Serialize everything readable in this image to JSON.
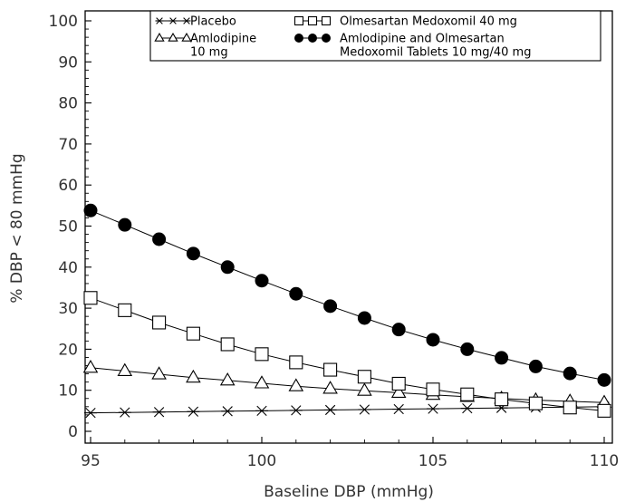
{
  "chart_data": {
    "type": "line",
    "xlabel": "Baseline DBP (mmHg)",
    "ylabel": "% DBP < 80 mmHg",
    "xlim": [
      95,
      110
    ],
    "ylim": [
      0,
      100
    ],
    "x_ticks": [
      95,
      100,
      105,
      110
    ],
    "y_ticks": [
      0,
      10,
      20,
      30,
      40,
      50,
      60,
      70,
      80,
      90,
      100
    ],
    "grid": false,
    "legend_position": "top-right",
    "x": [
      95,
      96,
      97,
      98,
      99,
      100,
      101,
      102,
      103,
      104,
      105,
      106,
      107,
      108,
      109,
      110
    ],
    "series": [
      {
        "name": "Placebo",
        "marker": "asterisk",
        "color": "#000000",
        "values": [
          4.5,
          4.6,
          4.7,
          4.8,
          4.9,
          5.0,
          5.1,
          5.2,
          5.3,
          5.4,
          5.5,
          5.6,
          5.7,
          5.8,
          5.9,
          6.0
        ]
      },
      {
        "name": "Amlodipine 10 mg",
        "legend_lines": [
          "Amlodipine",
          "10 mg"
        ],
        "marker": "triangle",
        "color": "#000000",
        "values": [
          15.5,
          14.7,
          13.9,
          13.1,
          12.4,
          11.7,
          11.0,
          10.4,
          9.9,
          9.4,
          8.9,
          8.4,
          8.0,
          7.6,
          7.3,
          7.0
        ]
      },
      {
        "name": "Olmesartan Medoxomil 40 mg",
        "marker": "square",
        "color": "#000000",
        "values": [
          32.5,
          29.5,
          26.5,
          23.8,
          21.2,
          18.8,
          16.8,
          15.0,
          13.3,
          11.6,
          10.2,
          9.0,
          7.8,
          6.8,
          5.8,
          5.0
        ]
      },
      {
        "name": "Amlodipine and Olmesartan Medoxomil Tablets 10 mg/40 mg",
        "legend_lines": [
          "Amlodipine and Olmesartan",
          "Medoxomil Tablets 10 mg/40 mg"
        ],
        "marker": "filled-circle",
        "color": "#000000",
        "values": [
          53.8,
          50.3,
          46.8,
          43.3,
          40.0,
          36.7,
          33.5,
          30.5,
          27.6,
          24.8,
          22.3,
          20.0,
          17.9,
          15.8,
          14.1,
          12.5
        ]
      }
    ]
  }
}
